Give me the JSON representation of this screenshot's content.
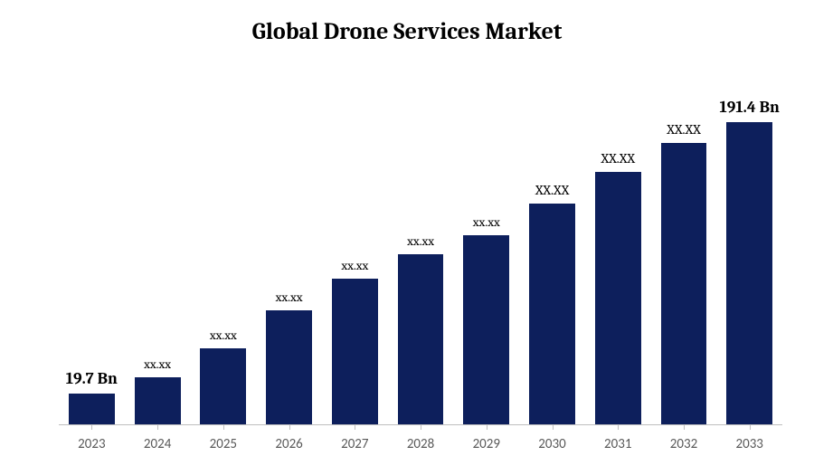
{
  "chart": {
    "type": "bar",
    "title": "Global Drone Services Market",
    "title_fontsize": 26,
    "title_weight": "bold",
    "title_color": "#000000",
    "background_color": "#ffffff",
    "categories": [
      "2023",
      "2024",
      "2025",
      "2026",
      "2027",
      "2028",
      "2029",
      "2030",
      "2031",
      "2032",
      "2033"
    ],
    "values": [
      19.7,
      30,
      48,
      72,
      92,
      108,
      120,
      140,
      160,
      178,
      191.4
    ],
    "bar_labels": [
      "19.7 Bn",
      "xx.xx",
      "xx.xx",
      "xx.xx",
      "xx.xx",
      "xx.xx",
      "xx.xx",
      "XX.XX",
      "XX.XX",
      "XX.XX",
      "191.4 Bn"
    ],
    "label_weights": [
      "bold",
      "normal",
      "normal",
      "normal",
      "normal",
      "normal",
      "normal",
      "normal",
      "normal",
      "normal",
      "bold"
    ],
    "label_fontsizes": [
      18,
      14,
      14,
      14,
      14,
      14,
      14,
      15,
      15,
      15,
      18
    ],
    "bar_color": "#0d1f5c",
    "ylim": [
      0,
      220
    ],
    "x_label_fontsize": 15,
    "x_label_color": "#595959",
    "axis_line_color": "#bfbfbf",
    "bar_width": 0.7
  }
}
